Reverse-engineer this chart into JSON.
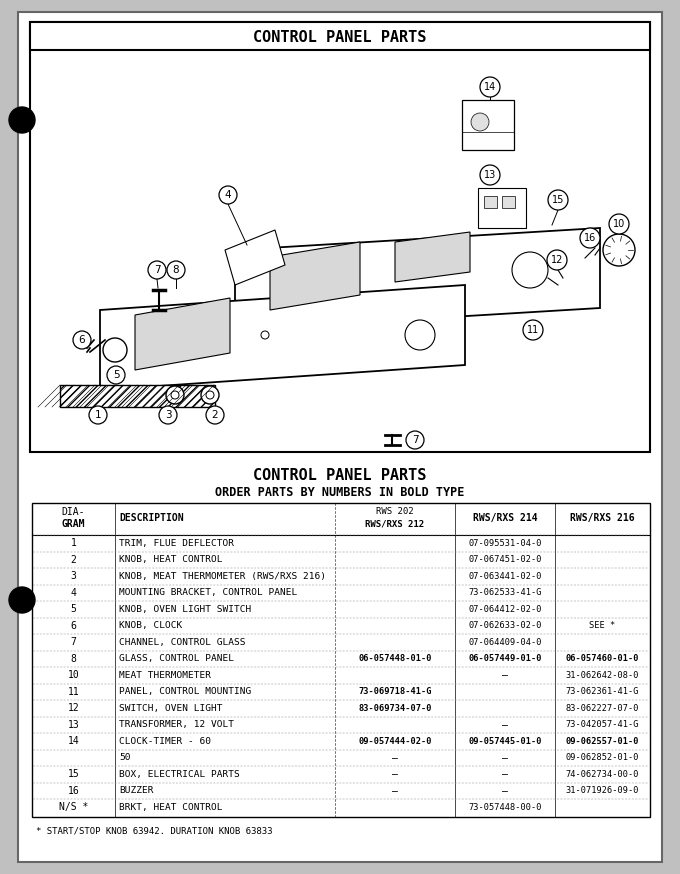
{
  "title_top": "CONTROL PANEL PARTS",
  "title_bottom": "CONTROL PANEL PARTS",
  "subtitle_bottom": "ORDER PARTS BY NUMBERS IN BOLD TYPE",
  "footnote": "* START/STOP KNOB 63942. DURATION KNOB 63833",
  "table_headers_line1": [
    "DIA-",
    "",
    "RWS 202",
    "",
    ""
  ],
  "table_headers_line2": [
    "GRAM",
    "DESCRIPTION",
    "RWS/RXS 212",
    "RWS/RXS 214",
    "RWS/RXS 216"
  ],
  "table_rows": [
    [
      "1",
      "TRIM, FLUE DEFLECTOR",
      "",
      "07-095531-04-0",
      ""
    ],
    [
      "2",
      "KNOB, HEAT CONTROL",
      "",
      "07-067451-02-0",
      ""
    ],
    [
      "3",
      "KNOB, MEAT THERMOMETER (RWS/RXS 216)",
      "",
      "07-063441-02-0",
      ""
    ],
    [
      "4",
      "MOUNTING BRACKET, CONTROL PANEL",
      "",
      "73-062533-41-G",
      ""
    ],
    [
      "5",
      "KNOB, OVEN LIGHT SWITCH",
      "",
      "07-064412-02-0",
      ""
    ],
    [
      "6",
      "KNOB, CLOCK",
      "",
      "07-062633-02-0",
      "SEE *"
    ],
    [
      "7",
      "CHANNEL, CONTROL GLASS",
      "",
      "07-064409-04-0",
      ""
    ],
    [
      "8",
      "GLASS, CONTROL PANEL",
      "06-057448-01-0",
      "06-057449-01-0",
      "06-057460-01-0"
    ],
    [
      "10",
      "MEAT THERMOMETER",
      "",
      "—",
      "31-062642-08-0"
    ],
    [
      "11",
      "PANEL, CONTROL MOUNTING",
      "73-069718-41-G",
      "",
      "73-062361-41-G"
    ],
    [
      "12",
      "SWITCH, OVEN LIGHT",
      "83-069734-07-0",
      "",
      "83-062227-07-0"
    ],
    [
      "13",
      "TRANSFORMER, 12 VOLT",
      "",
      "—",
      "73-042057-41-G"
    ],
    [
      "14",
      "CLOCK-TIMER - 60",
      "09-057444-02-0",
      "09-057445-01-0",
      "09-062557-01-0"
    ],
    [
      "",
      "50",
      "—",
      "—",
      "09-062852-01-0"
    ],
    [
      "15",
      "BOX, ELECTRICAL PARTS",
      "—",
      "—",
      "74-062734-00-0"
    ],
    [
      "16",
      "BUZZER",
      "—",
      "—",
      "31-071926-09-0"
    ],
    [
      "N/S *",
      "BRKT, HEAT CONTROL",
      "",
      "73-057448-00-0",
      ""
    ]
  ],
  "bold_parts": [
    "06-057448-01-0",
    "06-057449-01-0",
    "06-057460-01-0",
    "09-057444-02-0",
    "09-057445-01-0",
    "09-062557-01-0",
    "73-069718-41-G",
    "83-069734-07-0"
  ],
  "page_bg": "#c0c0c0",
  "paper_bg": "white"
}
